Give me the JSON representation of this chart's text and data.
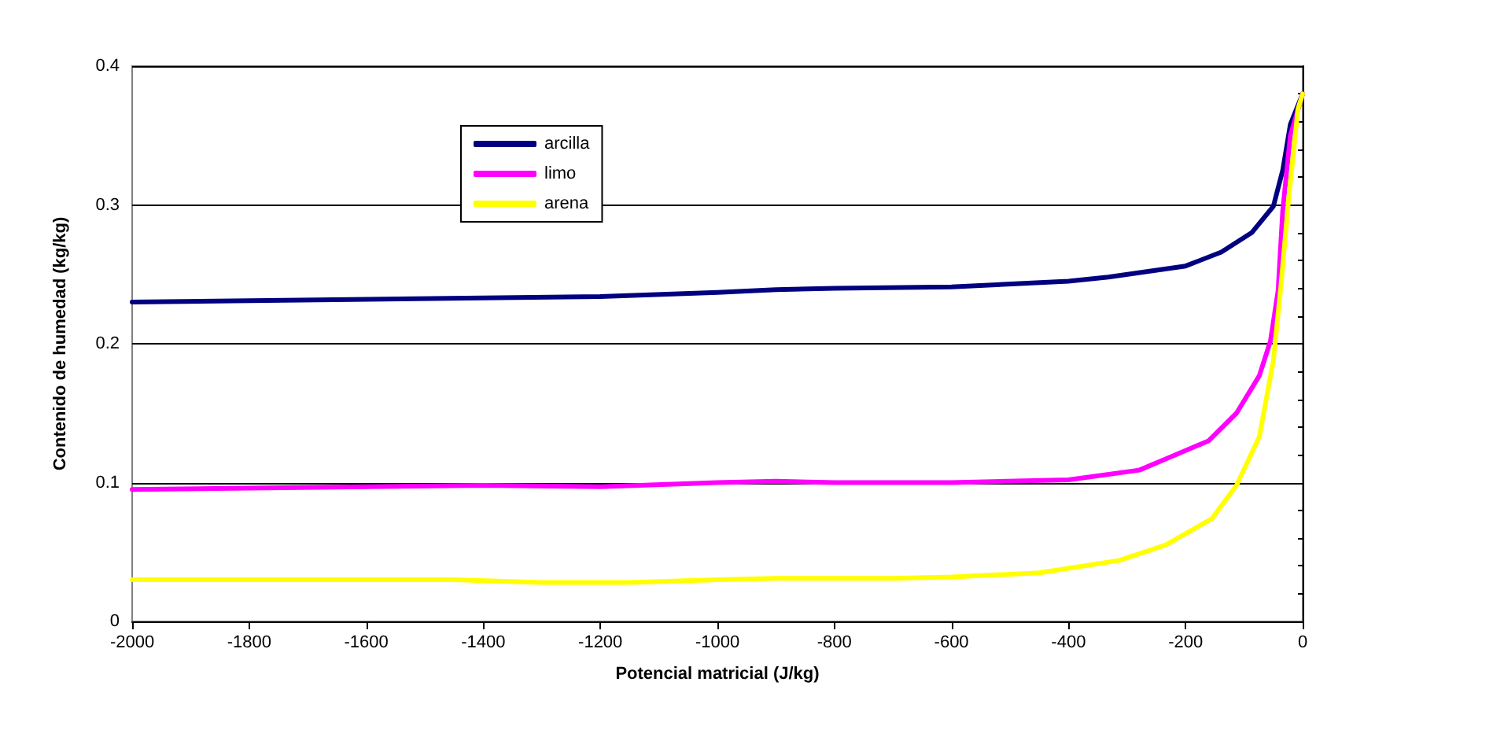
{
  "chart_data": {
    "type": "line",
    "xlabel": "Potencial matricial (J/kg)",
    "ylabel": "Contenido de humedad (kg/kg)",
    "xlim": [
      -2000,
      0
    ],
    "xticks": [
      -2000,
      -1800,
      -1600,
      -1400,
      -1200,
      -1000,
      -800,
      -600,
      -400,
      -200,
      0
    ],
    "ylim": [
      0,
      0.4
    ],
    "yticks": [
      0,
      0.1,
      0.2,
      0.3,
      0.4
    ],
    "grid": "y",
    "legend": "top left",
    "marker": "none",
    "line_style": "solid",
    "series": [
      {
        "name": "arcilla",
        "color": "#000080",
        "x": [
          -2000,
          -1400,
          -1200,
          -1000,
          -900,
          -800,
          -600,
          -400,
          -332,
          -200,
          -139,
          -87,
          -50,
          -34,
          -21,
          0
        ],
        "values": [
          0.23,
          0.233,
          0.234,
          0.237,
          0.239,
          0.24,
          0.241,
          0.245,
          0.248,
          0.256,
          0.266,
          0.28,
          0.299,
          0.325,
          0.358,
          0.38
        ]
      },
      {
        "name": "limo",
        "color": "#ff00ff",
        "x": [
          -2000,
          -1400,
          -1200,
          -1000,
          -900,
          -800,
          -600,
          -400,
          -279,
          -234,
          -161,
          -113,
          -74,
          -55,
          -42,
          -34,
          -21,
          0
        ],
        "values": [
          0.095,
          0.098,
          0.097,
          0.1,
          0.101,
          0.1,
          0.1,
          0.102,
          0.109,
          0.117,
          0.13,
          0.15,
          0.177,
          0.202,
          0.238,
          0.296,
          0.35,
          0.38
        ]
      },
      {
        "name": "arena",
        "color": "#ffff00",
        "x": [
          -2000,
          -1450,
          -1300,
          -1150,
          -1000,
          -900,
          -700,
          -600,
          -450,
          -313,
          -234,
          -155,
          -113,
          -74,
          -50,
          -37,
          -24,
          -8,
          0
        ],
        "values": [
          0.03,
          0.03,
          0.028,
          0.028,
          0.03,
          0.031,
          0.031,
          0.032,
          0.035,
          0.044,
          0.055,
          0.074,
          0.098,
          0.133,
          0.188,
          0.242,
          0.304,
          0.369,
          0.38
        ]
      }
    ]
  }
}
